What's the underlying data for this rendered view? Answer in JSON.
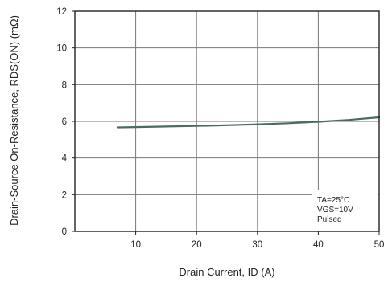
{
  "chart_data": {
    "type": "line",
    "xlabel": "Drain Current, ID (A)",
    "ylabel": "Drain-Source On-Resistance, RDS(ON) (mΩ)",
    "xlim": [
      0,
      50
    ],
    "ylim": [
      0,
      12
    ],
    "xticks": [
      10,
      20,
      30,
      40,
      50
    ],
    "yticks": [
      0,
      2,
      4,
      6,
      8,
      10,
      12
    ],
    "grid": true,
    "annotation": [
      "TA=25°C",
      "VGS=10V",
      "Pulsed"
    ],
    "series": [
      {
        "color": "#4a6b63",
        "x": [
          7,
          10,
          15,
          20,
          25,
          30,
          35,
          40,
          45,
          50
        ],
        "y": [
          5.67,
          5.69,
          5.72,
          5.75,
          5.79,
          5.84,
          5.9,
          5.98,
          6.08,
          6.22
        ]
      }
    ]
  }
}
